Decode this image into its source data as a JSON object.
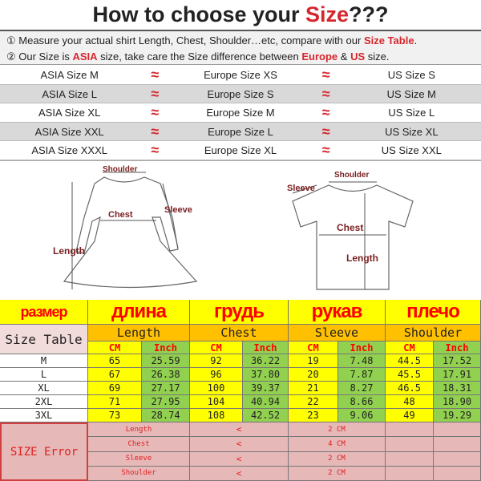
{
  "title": {
    "prefix": "How to choose your ",
    "highlight": "Size",
    "suffix": "???"
  },
  "notes": [
    {
      "num": "①",
      "text": " Measure your actual shirt Length, Chest, Shoulder…etc, compare with our ",
      "highlight": "Size Table",
      "end": "."
    },
    {
      "num": "②",
      "text": " Our Size is ",
      "highlight": "ASIA",
      "mid": " size, take care the Size difference between ",
      "h2": "Europe",
      "and": " & ",
      "h3": "US",
      "end": " size."
    }
  ],
  "conversion": [
    [
      "ASIA Size M",
      "Europe Size XS",
      "US Size S"
    ],
    [
      "ASIA Size L",
      "Europe Size S",
      "US Size M"
    ],
    [
      "ASIA Size XL",
      "Europe Size M",
      "US Size L"
    ],
    [
      "ASIA Size XXL",
      "Europe Size L",
      "US Size XL"
    ],
    [
      "ASIA Size XXXL",
      "Europe Size XL",
      "US Size XXL"
    ]
  ],
  "approx_symbol": "≈",
  "dress_labels": {
    "shoulder": "Shoulder",
    "chest": "Chest",
    "sleeve": "Sleeve",
    "length": "Length"
  },
  "shirt_labels": {
    "shoulder": "Shoulder",
    "sleeve": "Sleeve",
    "chest": "Chest",
    "length": "Length"
  },
  "table": {
    "russian": [
      "размер",
      "длина",
      "грудь",
      "рукав",
      "плечо"
    ],
    "size_table_label": "Size Table",
    "measures": [
      "Length",
      "Chest",
      "Sleeve",
      "Shoulder"
    ],
    "unit_cm": "CM",
    "unit_inch": "Inch",
    "rows": [
      {
        "size": "M",
        "v": [
          "65",
          "25.59",
          "92",
          "36.22",
          "19",
          "7.48",
          "44.5",
          "17.52"
        ]
      },
      {
        "size": "L",
        "v": [
          "67",
          "26.38",
          "96",
          "37.80",
          "20",
          "7.87",
          "45.5",
          "17.91"
        ]
      },
      {
        "size": "XL",
        "v": [
          "69",
          "27.17",
          "100",
          "39.37",
          "21",
          "8.27",
          "46.5",
          "18.31"
        ]
      },
      {
        "size": "2XL",
        "v": [
          "71",
          "27.95",
          "104",
          "40.94",
          "22",
          "8.66",
          "48",
          "18.90"
        ]
      },
      {
        "size": "3XL",
        "v": [
          "73",
          "28.74",
          "108",
          "42.52",
          "23",
          "9.06",
          "49",
          "19.29"
        ]
      }
    ],
    "error_label": "SIZE Error",
    "errors": [
      {
        "name": "Length",
        "op": "<",
        "val": "2 CM"
      },
      {
        "name": "Chest",
        "op": "<",
        "val": "4 CM"
      },
      {
        "name": "Sleeve",
        "op": "<",
        "val": "2 CM"
      },
      {
        "name": "Shoulder",
        "op": "<",
        "val": "2 CM"
      }
    ]
  },
  "colors": {
    "red": "#d6262d",
    "yellow": "#ffff00",
    "orange": "#ffc000",
    "green": "#92d050",
    "pink": "#e6b8b8"
  }
}
